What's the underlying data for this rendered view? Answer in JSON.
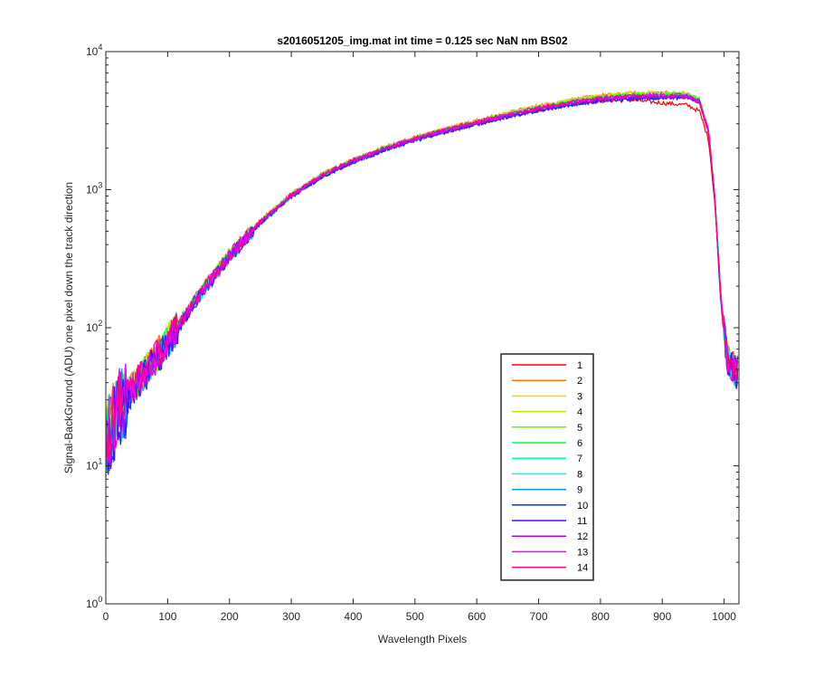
{
  "chart_data": {
    "type": "line",
    "title": "s2016051205_img.mat int time = 0.125 sec  NaN nm BS02",
    "xlabel": "Wavelength Pixels",
    "ylabel": "Signal-BackGround (ADU) one pixel down the track direction",
    "xlim": [
      0,
      1024
    ],
    "ylim": [
      1,
      10000
    ],
    "yscale": "log",
    "grid": false,
    "legend_position": "lower-right",
    "x_ticks": [
      0,
      100,
      200,
      300,
      400,
      500,
      600,
      700,
      800,
      900,
      1000
    ],
    "x_tick_labels": [
      "0",
      "100",
      "200",
      "300",
      "400",
      "500",
      "600",
      "700",
      "800",
      "900",
      "1000"
    ],
    "y_ticks": [
      1,
      10,
      100,
      1000,
      10000
    ],
    "y_tick_labels": [
      {
        "base": "10",
        "exp": "0"
      },
      {
        "base": "10",
        "exp": "1"
      },
      {
        "base": "10",
        "exp": "2"
      },
      {
        "base": "10",
        "exp": "3"
      },
      {
        "base": "10",
        "exp": "4"
      }
    ],
    "x": [
      0,
      20,
      40,
      60,
      80,
      100,
      150,
      200,
      250,
      300,
      350,
      400,
      450,
      500,
      550,
      600,
      650,
      700,
      750,
      800,
      850,
      900,
      940,
      960,
      975,
      985,
      995,
      1005,
      1010,
      1024
    ],
    "series": [
      {
        "name": "1",
        "color": "#ff0000",
        "values": [
          15,
          25,
          35,
          45,
          60,
          80,
          170,
          330,
          580,
          900,
          1250,
          1600,
          1950,
          2300,
          2650,
          3000,
          3400,
          3800,
          4150,
          4400,
          4450,
          4250,
          4100,
          3700,
          2300,
          800,
          150,
          60,
          55,
          45
        ]
      },
      {
        "name": "2",
        "color": "#ff7700",
        "values": [
          18,
          28,
          38,
          48,
          62,
          82,
          172,
          340,
          600,
          930,
          1300,
          1660,
          2030,
          2400,
          2780,
          3160,
          3600,
          4050,
          4450,
          4800,
          5000,
          5050,
          4950,
          4500,
          2700,
          900,
          160,
          62,
          56,
          46
        ]
      },
      {
        "name": "3",
        "color": "#ffd500",
        "values": [
          16,
          26,
          36,
          47,
          61,
          81,
          171,
          338,
          598,
          925,
          1295,
          1650,
          2020,
          2390,
          2770,
          3150,
          3590,
          4040,
          4440,
          4790,
          5000,
          5050,
          4980,
          4550,
          2750,
          910,
          158,
          61,
          55,
          45
        ]
      },
      {
        "name": "4",
        "color": "#b0f000",
        "values": [
          17,
          27,
          37,
          47,
          61,
          81,
          171,
          336,
          594,
          920,
          1288,
          1640,
          2010,
          2375,
          2750,
          3120,
          3550,
          3990,
          4390,
          4740,
          4950,
          5000,
          4940,
          4520,
          2720,
          900,
          156,
          60,
          55,
          46
        ]
      },
      {
        "name": "5",
        "color": "#55ff00",
        "values": [
          16,
          26,
          36,
          46,
          60,
          80,
          170,
          334,
          590,
          915,
          1280,
          1630,
          2000,
          2360,
          2730,
          3100,
          3520,
          3950,
          4340,
          4680,
          4880,
          4930,
          4880,
          4480,
          2700,
          890,
          155,
          60,
          54,
          45
        ]
      },
      {
        "name": "6",
        "color": "#00ff44",
        "values": [
          15,
          25,
          35,
          45,
          60,
          80,
          169,
          332,
          586,
          910,
          1272,
          1620,
          1985,
          2345,
          2710,
          3075,
          3490,
          3910,
          4300,
          4640,
          4830,
          4880,
          4840,
          4450,
          2680,
          885,
          154,
          59,
          54,
          45
        ]
      },
      {
        "name": "7",
        "color": "#00ff99",
        "values": [
          15,
          25,
          35,
          45,
          59,
          79,
          168,
          330,
          582,
          905,
          1265,
          1610,
          1970,
          2330,
          2690,
          3050,
          3460,
          3870,
          4250,
          4580,
          4770,
          4820,
          4790,
          4420,
          2660,
          880,
          153,
          59,
          53,
          44
        ]
      },
      {
        "name": "8",
        "color": "#00ffee",
        "values": [
          14,
          24,
          34,
          44,
          58,
          78,
          167,
          328,
          578,
          900,
          1258,
          1600,
          1955,
          2315,
          2670,
          3025,
          3430,
          3830,
          4200,
          4520,
          4710,
          4760,
          4740,
          4380,
          2640,
          875,
          152,
          60,
          55,
          46
        ]
      },
      {
        "name": "9",
        "color": "#0099ff",
        "values": [
          14,
          24,
          34,
          44,
          58,
          78,
          166,
          326,
          574,
          895,
          1250,
          1590,
          1940,
          2300,
          2650,
          3000,
          3400,
          3790,
          4150,
          4460,
          4650,
          4700,
          4690,
          4350,
          2620,
          870,
          151,
          58,
          53,
          44
        ]
      },
      {
        "name": "10",
        "color": "#0033ff",
        "values": [
          13,
          23,
          33,
          43,
          57,
          77,
          165,
          324,
          570,
          890,
          1242,
          1580,
          1925,
          2285,
          2630,
          2975,
          3370,
          3750,
          4100,
          4400,
          4590,
          4640,
          4640,
          4320,
          2600,
          860,
          150,
          58,
          52,
          44
        ]
      },
      {
        "name": "11",
        "color": "#5500ff",
        "values": [
          14,
          24,
          34,
          44,
          58,
          78,
          166,
          326,
          572,
          892,
          1246,
          1585,
          1932,
          2292,
          2640,
          2988,
          3385,
          3770,
          4125,
          4430,
          4620,
          4670,
          4660,
          4330,
          2610,
          865,
          150,
          58,
          53,
          44
        ]
      },
      {
        "name": "12",
        "color": "#aa00ff",
        "values": [
          15,
          25,
          35,
          45,
          59,
          79,
          168,
          330,
          580,
          905,
          1262,
          1605,
          1960,
          2320,
          2675,
          3030,
          3440,
          3840,
          4210,
          4530,
          4720,
          4760,
          4730,
          4380,
          2640,
          875,
          152,
          59,
          54,
          45
        ]
      },
      {
        "name": "13",
        "color": "#ff00ff",
        "values": [
          16,
          26,
          36,
          46,
          60,
          80,
          170,
          334,
          588,
          915,
          1278,
          1625,
          1990,
          2355,
          2720,
          3085,
          3500,
          3920,
          4310,
          4650,
          4840,
          4880,
          4830,
          4440,
          2680,
          885,
          154,
          60,
          55,
          46
        ]
      },
      {
        "name": "14",
        "color": "#ff0088",
        "values": [
          17,
          27,
          37,
          47,
          61,
          81,
          171,
          336,
          592,
          920,
          1285,
          1635,
          2000,
          2365,
          2730,
          3090,
          3500,
          3900,
          4270,
          4580,
          4740,
          4750,
          4680,
          4300,
          2600,
          870,
          153,
          60,
          56,
          47
        ]
      }
    ]
  }
}
